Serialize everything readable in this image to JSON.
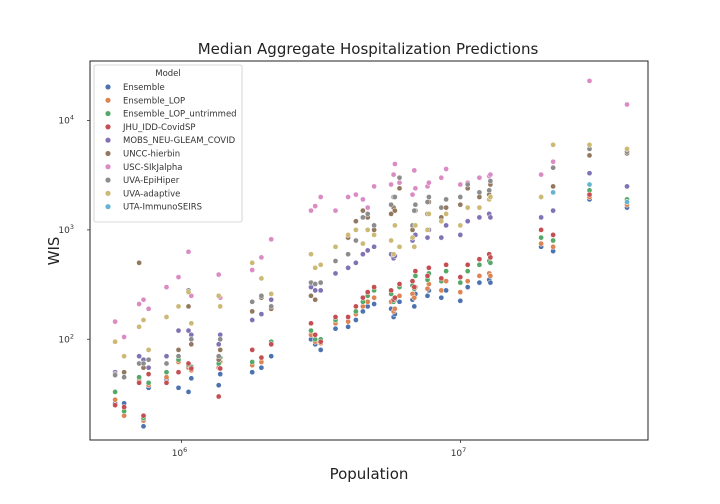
{
  "chart_data": {
    "type": "scatter",
    "title": "Median Aggregate Hospitalization Predictions",
    "xlabel": "Population",
    "ylabel": "WIS",
    "xscale": "log",
    "yscale": "log",
    "xlim": [
      470000,
      47000000
    ],
    "ylim": [
      12,
      35000
    ],
    "grid": false,
    "legend": {
      "title": "Model",
      "placement": "top-left"
    },
    "x_ticks": [
      {
        "value": 1000000,
        "base": "10",
        "exp": "6"
      },
      {
        "value": 10000000,
        "base": "10",
        "exp": "7"
      }
    ],
    "y_ticks": [
      {
        "value": 100,
        "base": "10",
        "exp": "2"
      },
      {
        "value": 1000,
        "base": "10",
        "exp": "3"
      },
      {
        "value": 10000,
        "base": "10",
        "exp": "4"
      }
    ],
    "populations": [
      578000,
      623000,
      705000,
      731000,
      762000,
      884000,
      976000,
      1060000,
      1084000,
      1359000,
      1377000,
      1793000,
      1934000,
      2097000,
      2912000,
      3014000,
      3155000,
      3565000,
      3956000,
      4217000,
      4468000,
      4649000,
      4903000,
      5640000,
      5758000,
      5820000,
      6046000,
      6732000,
      6829000,
      6892000,
      7615000,
      7705000,
      8536000,
      8882000,
      9987000,
      10617000,
      11690000,
      12670000,
      12800000,
      19450000,
      21480000,
      28990000,
      39510000
    ],
    "series": [
      {
        "name": "Ensemble",
        "color": "#4c72b0",
        "values": [
          26,
          26,
          null,
          16,
          36,
          43,
          36,
          33,
          44,
          38,
          48,
          50,
          55,
          70,
          100,
          90,
          80,
          125,
          130,
          150,
          180,
          200,
          210,
          190,
          160,
          170,
          220,
          230,
          200,
          260,
          250,
          280,
          240,
          280,
          225,
          300,
          330,
          350,
          330,
          700,
          640,
          1900,
          1600
        ]
      },
      {
        "name": "Ensemble_LOP",
        "color": "#dd8452",
        "values": [
          28,
          20,
          42,
          18,
          38,
          45,
          62,
          55,
          52,
          55,
          62,
          58,
          62,
          90,
          110,
          95,
          92,
          140,
          145,
          170,
          200,
          220,
          240,
          220,
          180,
          190,
          250,
          260,
          240,
          300,
          290,
          320,
          280,
          340,
          270,
          340,
          380,
          400,
          380,
          750,
          700,
          2000,
          1700
        ]
      },
      {
        "name": "Ensemble_LOP_untrimmed",
        "color": "#55a868",
        "values": [
          33,
          22,
          45,
          19,
          40,
          50,
          65,
          58,
          56,
          60,
          68,
          62,
          68,
          95,
          120,
          100,
          100,
          150,
          160,
          180,
          220,
          250,
          280,
          260,
          220,
          230,
          300,
          310,
          290,
          380,
          350,
          400,
          340,
          420,
          330,
          420,
          480,
          520,
          500,
          850,
          800,
          2300,
          1900
        ]
      },
      {
        "name": "JHU_IDD-CovidSP",
        "color": "#c44e52",
        "values": [
          25,
          24,
          40,
          20,
          48,
          40,
          50,
          60,
          54,
          30,
          54,
          80,
          68,
          90,
          140,
          110,
          95,
          160,
          160,
          200,
          240,
          270,
          300,
          280,
          230,
          240,
          320,
          340,
          300,
          420,
          380,
          450,
          360,
          480,
          370,
          480,
          540,
          600,
          560,
          1000,
          900,
          2100,
          1800
        ]
      },
      {
        "name": "MOBS_NEU-GLEAM_COVID",
        "color": "#8172b3",
        "values": [
          50,
          50,
          70,
          65,
          55,
          70,
          120,
          120,
          110,
          90,
          110,
          150,
          170,
          230,
          300,
          280,
          280,
          400,
          450,
          500,
          600,
          650,
          700,
          600,
          550,
          580,
          700,
          800,
          700,
          900,
          850,
          1000,
          850,
          1100,
          900,
          1200,
          1300,
          1400,
          1300,
          1300,
          1500,
          3300,
          2500
        ]
      },
      {
        "name": "UNCC-hierbin",
        "color": "#937860",
        "values": [
          48,
          50,
          500,
          55,
          65,
          60,
          80,
          200,
          90,
          65,
          80,
          180,
          240,
          190,
          250,
          230,
          330,
          700,
          850,
          1200,
          1500,
          1300,
          1000,
          1400,
          1600,
          1500,
          2400,
          1000,
          1100,
          1500,
          1400,
          1800,
          1300,
          1600,
          1700,
          2400,
          2000,
          2100,
          2600,
          2000,
          2500,
          4800,
          5000
        ]
      },
      {
        "name": "USC-SIkJalpha",
        "color": "#da8bc3",
        "values": [
          145,
          105,
          210,
          230,
          190,
          300,
          370,
          630,
          250,
          390,
          240,
          430,
          560,
          820,
          1500,
          1650,
          2000,
          1500,
          2000,
          2100,
          1900,
          1600,
          2500,
          2600,
          3200,
          4000,
          2700,
          2100,
          3500,
          2400,
          2500,
          2700,
          3000,
          3600,
          2600,
          2700,
          3000,
          3100,
          3200,
          3200,
          4200,
          23000,
          14000
        ]
      },
      {
        "name": "UVA-EpiHiper",
        "color": "#8c8c8c",
        "values": [
          47,
          45,
          60,
          60,
          65,
          60,
          70,
          280,
          100,
          70,
          100,
          220,
          250,
          200,
          330,
          320,
          330,
          520,
          600,
          800,
          1300,
          1400,
          1100,
          1700,
          2000,
          2000,
          3000,
          1100,
          1500,
          1700,
          1800,
          2000,
          1600,
          1900,
          2000,
          2600,
          2200,
          2300,
          2800,
          2000,
          3700,
          5500,
          5200
        ]
      },
      {
        "name": "UVA-adaptive",
        "color": "#ccb974",
        "values": [
          95,
          70,
          130,
          150,
          80,
          160,
          200,
          270,
          140,
          250,
          200,
          500,
          360,
          260,
          600,
          450,
          480,
          700,
          900,
          1000,
          750,
          1000,
          900,
          800,
          600,
          1100,
          700,
          850,
          700,
          1100,
          1000,
          1400,
          1200,
          1400,
          1100,
          1600,
          1600,
          1900,
          2000,
          2000,
          6000,
          6000,
          5500
        ]
      },
      {
        "name": "UTA-ImmunoSEIRS",
        "color": "#64b5cd",
        "values": [
          null,
          null,
          null,
          null,
          null,
          null,
          null,
          null,
          null,
          null,
          null,
          null,
          null,
          null,
          null,
          null,
          null,
          null,
          null,
          null,
          null,
          null,
          null,
          null,
          null,
          null,
          null,
          null,
          null,
          null,
          null,
          null,
          null,
          null,
          null,
          null,
          null,
          null,
          null,
          null,
          2200,
          2600,
          1800
        ]
      }
    ]
  }
}
